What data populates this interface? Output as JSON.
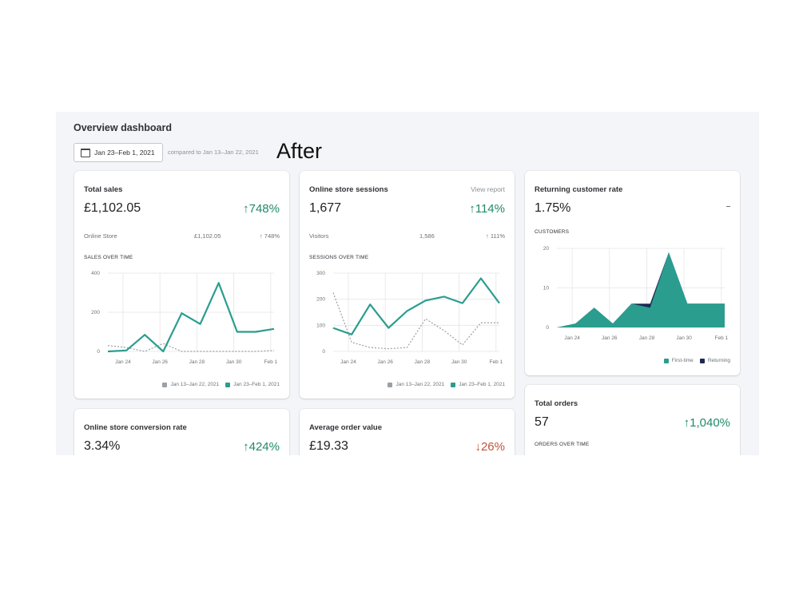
{
  "header": {
    "title": "Overview dashboard",
    "date_range": "Jan 23–Feb 1, 2021",
    "compare": "compared to Jan 13–Jan 22, 2021",
    "annotation": "After"
  },
  "colors": {
    "accent": "#2a9d8f",
    "returning": "#1c2a52",
    "compare_line": "#9aa0a6",
    "positive": "#1f8a6b",
    "negative": "#c1543a"
  },
  "cards": {
    "total_sales": {
      "title": "Total sales",
      "value": "£1,102.05",
      "change": "↑748%",
      "sub_label": "Online Store",
      "sub_value": "£1,102.05",
      "sub_change": "↑ 748%",
      "chart_label": "SALES OVER TIME",
      "legend_prev": "Jan 13–Jan 22, 2021",
      "legend_curr": "Jan 23–Feb 1, 2021"
    },
    "sessions": {
      "title": "Online store sessions",
      "link": "View report",
      "value": "1,677",
      "change": "↑114%",
      "sub_label": "Visitors",
      "sub_value": "1,586",
      "sub_change": "↑ 111%",
      "chart_label": "SESSIONS OVER TIME",
      "legend_prev": "Jan 13–Jan 22, 2021",
      "legend_curr": "Jan 23–Feb 1, 2021"
    },
    "returning": {
      "title": "Returning customer rate",
      "value": "1.75%",
      "chart_label": "CUSTOMERS",
      "legend_first": "First-time",
      "legend_returning": "Returning"
    },
    "conversion": {
      "title": "Online store conversion rate",
      "value": "3.34%",
      "change": "↑424%"
    },
    "aov": {
      "title": "Average order value",
      "value": "£19.33",
      "change": "↓26%"
    },
    "total_orders": {
      "title": "Total orders",
      "value": "57",
      "change": "↑1,040%",
      "chart_label": "ORDERS OVER TIME"
    }
  },
  "chart_data": [
    {
      "type": "line",
      "title": "SALES OVER TIME",
      "x_ticks": [
        "Jan 24",
        "Jan 26",
        "Jan 28",
        "Jan 30",
        "Feb 1"
      ],
      "y_ticks": [
        "0",
        "200",
        "400"
      ],
      "ylim": [
        0,
        400
      ],
      "series": [
        {
          "name": "Jan 23–Feb 1, 2021",
          "values": [
            0,
            5,
            85,
            0,
            195,
            140,
            350,
            100,
            100,
            115
          ]
        },
        {
          "name": "Jan 13–Jan 22, 2021",
          "values": [
            30,
            20,
            0,
            40,
            0,
            0,
            0,
            0,
            0,
            5
          ]
        }
      ]
    },
    {
      "type": "line",
      "title": "SESSIONS OVER TIME",
      "x_ticks": [
        "Jan 24",
        "Jan 26",
        "Jan 28",
        "Jan 30",
        "Feb 1"
      ],
      "y_ticks": [
        "0",
        "100",
        "200",
        "300"
      ],
      "ylim": [
        0,
        300
      ],
      "series": [
        {
          "name": "Jan 23–Feb 1, 2021",
          "values": [
            90,
            65,
            180,
            90,
            155,
            195,
            210,
            185,
            280,
            185
          ]
        },
        {
          "name": "Jan 13–Jan 22, 2021",
          "values": [
            225,
            35,
            15,
            10,
            15,
            125,
            80,
            25,
            110,
            110
          ]
        }
      ]
    },
    {
      "type": "area",
      "title": "CUSTOMERS",
      "x_ticks": [
        "Jan 24",
        "Jan 26",
        "Jan 28",
        "Jan 30",
        "Feb 1"
      ],
      "y_ticks": [
        "0",
        "10",
        "20"
      ],
      "ylim": [
        0,
        20
      ],
      "series": [
        {
          "name": "First-time",
          "values": [
            0,
            1,
            5,
            1,
            6,
            5,
            19,
            6,
            6,
            6
          ]
        },
        {
          "name": "Returning",
          "values": [
            0,
            0,
            0,
            0,
            0,
            1,
            0,
            0,
            0,
            0
          ]
        }
      ]
    }
  ]
}
